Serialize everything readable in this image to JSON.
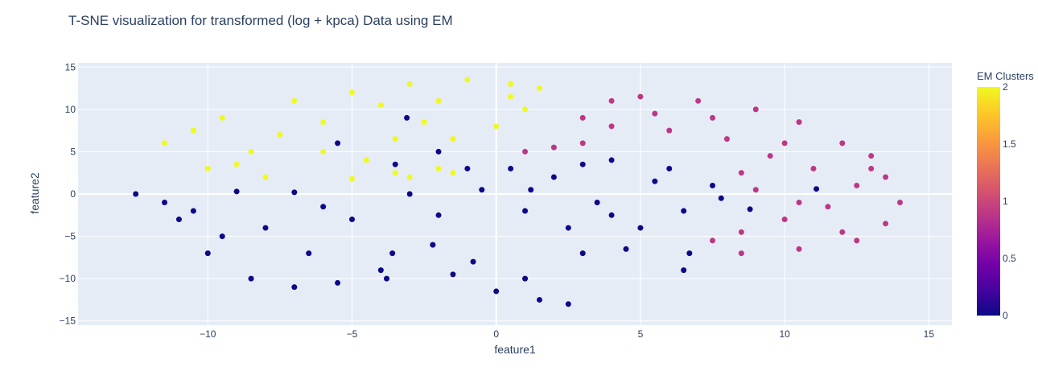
{
  "chart_data": {
    "type": "scatter",
    "title": "T-SNE visualization for transformed (log + kpca) Data using EM",
    "xlabel": "feature1",
    "ylabel": "feature2",
    "xlim": [
      -14.5,
      15.8
    ],
    "ylim": [
      -15.5,
      15.5
    ],
    "xticks": [
      -10,
      -5,
      0,
      5,
      10,
      15
    ],
    "xtick_labels": [
      "−10",
      "−5",
      "0",
      "5",
      "10",
      "15"
    ],
    "yticks": [
      -15,
      -10,
      -5,
      0,
      5,
      10,
      15
    ],
    "ytick_labels": [
      "−15",
      "−10",
      "−5",
      "0",
      "5",
      "10",
      "15"
    ],
    "grid": true,
    "colorbar": {
      "title": "EM Clusters",
      "range": [
        0,
        2
      ],
      "ticks": [
        0,
        0.5,
        1,
        1.5,
        2
      ],
      "tick_labels": [
        "0",
        "0.5",
        "1",
        "1.5",
        "2"
      ],
      "colorscale": [
        "#0d0887",
        "#46039f",
        "#7201a8",
        "#9c179e",
        "#bd3786",
        "#d8576b",
        "#ed7953",
        "#fb9f3a",
        "#fdca26",
        "#f0f921"
      ]
    },
    "clusters": [
      {
        "value": 0,
        "color": "#0d0887",
        "approx_points": [
          [
            -12.5,
            0.0
          ],
          [
            -11.0,
            -3.0
          ],
          [
            -10.0,
            -7.0
          ],
          [
            -8.5,
            -10.0
          ],
          [
            -7.0,
            -11.0
          ],
          [
            -5.5,
            -10.5
          ],
          [
            -4.0,
            -9.0
          ],
          [
            -3.6,
            -7.0
          ],
          [
            -5.0,
            -3.0
          ],
          [
            -7.0,
            0.2
          ],
          [
            -9.0,
            0.3
          ],
          [
            -11.5,
            -1.0
          ],
          [
            -8.0,
            -4.0
          ],
          [
            -6.5,
            -7.0
          ],
          [
            -9.5,
            -5.0
          ],
          [
            -3.8,
            -10.0
          ],
          [
            -6.0,
            -1.5
          ],
          [
            -10.5,
            -2.0
          ],
          [
            -3.5,
            3.5
          ],
          [
            -2.0,
            5.0
          ],
          [
            -1.0,
            3.0
          ],
          [
            -3.0,
            0.0
          ],
          [
            -2.0,
            -2.5
          ],
          [
            -2.2,
            -6.0
          ],
          [
            -1.5,
            -9.5
          ],
          [
            0.0,
            -11.5
          ],
          [
            1.5,
            -12.5
          ],
          [
            2.5,
            -13.0
          ],
          [
            1.0,
            -10.0
          ],
          [
            -0.8,
            -8.0
          ],
          [
            -0.5,
            0.5
          ],
          [
            1.0,
            -2.0
          ],
          [
            2.5,
            -4.0
          ],
          [
            4.5,
            -6.5
          ],
          [
            6.5,
            -9.0
          ],
          [
            6.7,
            -7.0
          ],
          [
            5.0,
            -4.0
          ],
          [
            3.5,
            -1.0
          ],
          [
            2.0,
            2.0
          ],
          [
            4.0,
            4.0
          ],
          [
            6.0,
            3.0
          ],
          [
            7.5,
            1.0
          ],
          [
            7.8,
            -0.5
          ],
          [
            6.5,
            -2.0
          ],
          [
            5.5,
            1.5
          ],
          [
            3.0,
            3.5
          ],
          [
            1.2,
            0.5
          ],
          [
            3.0,
            -7.0
          ],
          [
            4.0,
            -2.5
          ],
          [
            0.5,
            3.0
          ],
          [
            -3.1,
            9.0
          ],
          [
            11.1,
            0.6
          ],
          [
            8.8,
            -1.8
          ],
          [
            -5.5,
            6.0
          ]
        ]
      },
      {
        "value": 1,
        "color": "#bd3786",
        "approx_points": [
          [
            3.0,
            6.0
          ],
          [
            3.0,
            9.0
          ],
          [
            4.0,
            11.0
          ],
          [
            5.0,
            11.5
          ],
          [
            7.0,
            11.0
          ],
          [
            9.0,
            10.0
          ],
          [
            10.5,
            8.5
          ],
          [
            12.0,
            6.0
          ],
          [
            13.0,
            4.5
          ],
          [
            13.5,
            2.0
          ],
          [
            14.0,
            -1.0
          ],
          [
            13.5,
            -3.5
          ],
          [
            12.5,
            -5.5
          ],
          [
            10.5,
            -6.5
          ],
          [
            8.5,
            -7.0
          ],
          [
            7.5,
            -5.5
          ],
          [
            8.5,
            -4.5
          ],
          [
            10.0,
            -3.0
          ],
          [
            11.5,
            -1.5
          ],
          [
            12.5,
            1.0
          ],
          [
            11.0,
            3.0
          ],
          [
            9.5,
            4.5
          ],
          [
            8.0,
            6.5
          ],
          [
            6.0,
            7.5
          ],
          [
            4.0,
            8.0
          ],
          [
            9.0,
            0.5
          ],
          [
            10.5,
            -1.0
          ],
          [
            7.5,
            9.0
          ],
          [
            2.0,
            5.5
          ],
          [
            1.0,
            5.0
          ],
          [
            12.0,
            -4.5
          ],
          [
            5.5,
            9.5
          ],
          [
            10.0,
            6.0
          ],
          [
            8.5,
            2.5
          ],
          [
            13.0,
            3.0
          ]
        ]
      },
      {
        "value": 2,
        "color": "#f0f921",
        "approx_points": [
          [
            -11.5,
            6.0
          ],
          [
            -10.0,
            3.0
          ],
          [
            -8.0,
            2.0
          ],
          [
            -5.0,
            1.8
          ],
          [
            -3.0,
            2.0
          ],
          [
            -1.5,
            2.5
          ],
          [
            -9.5,
            9.0
          ],
          [
            -7.0,
            11.0
          ],
          [
            -5.0,
            12.0
          ],
          [
            -3.0,
            13.0
          ],
          [
            -1.0,
            13.5
          ],
          [
            0.5,
            13.0
          ],
          [
            1.5,
            12.5
          ],
          [
            1.0,
            10.0
          ],
          [
            0.0,
            8.0
          ],
          [
            -1.5,
            6.5
          ],
          [
            -3.5,
            6.5
          ],
          [
            -6.0,
            5.0
          ],
          [
            -8.5,
            5.0
          ],
          [
            -10.5,
            7.5
          ],
          [
            -6.0,
            8.5
          ],
          [
            -4.0,
            10.5
          ],
          [
            -2.0,
            11.0
          ],
          [
            -7.5,
            7.0
          ],
          [
            -4.5,
            4.0
          ],
          [
            -2.5,
            8.5
          ],
          [
            0.5,
            11.5
          ],
          [
            -9.0,
            3.5
          ],
          [
            -3.5,
            2.5
          ],
          [
            -2.0,
            3.0
          ]
        ]
      }
    ]
  }
}
